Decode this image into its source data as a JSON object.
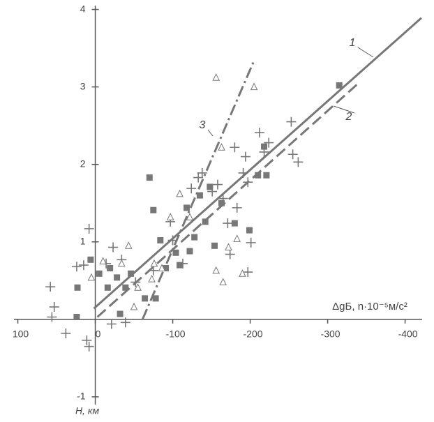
{
  "chart_data": {
    "type": "scatter",
    "x_label": "ΔgБ, n·10⁻⁵м/с²",
    "y_label": "H, км",
    "xlim": [
      105,
      -422
    ],
    "ylim": [
      -1.1,
      4.05
    ],
    "xticks": [
      100,
      0,
      -100,
      -200,
      -300,
      -400
    ],
    "yticks": [
      -1,
      1,
      2,
      3,
      4
    ],
    "color": "#777777",
    "series": [
      {
        "marker": "plus",
        "x": [
          58,
          53,
          56,
          38,
          24,
          15,
          8,
          11,
          8,
          -14,
          -23,
          -21,
          -34,
          -39,
          -52,
          -75,
          -97,
          -100,
          -113,
          -124,
          -133,
          -138,
          -151,
          -158,
          -165,
          -171,
          -174,
          -180,
          -183,
          -191,
          -197,
          -201,
          -197,
          -212,
          -218,
          -224,
          -253,
          -255,
          -262,
          -194
        ],
        "values": [
          0.42,
          0.16,
          0.03,
          -0.18,
          0.68,
          0.7,
          1.17,
          -0.27,
          -0.35,
          0.72,
          0.93,
          -0.06,
          0.77,
          -0.04,
          0.48,
          0.63,
          1.26,
          1.02,
          0.72,
          1.69,
          1.83,
          1.89,
          1.65,
          1.74,
          1.56,
          1.24,
          0.84,
          2.22,
          1.44,
          1.89,
          1.77,
          0.99,
          0.61,
          2.41,
          2.16,
          2.28,
          2.55,
          2.13,
          2.03,
          2.1
        ]
      },
      {
        "marker": "square",
        "x": [
          24,
          23,
          6,
          -5,
          -16,
          -19,
          -28,
          -32,
          -39,
          -46,
          -64,
          -70,
          -75,
          -78,
          -84,
          -91,
          -104,
          -109,
          -118,
          -122,
          -128,
          -135,
          -142,
          -148,
          -154,
          -163,
          -180,
          -199,
          -210,
          -221,
          -218,
          -315
        ],
        "values": [
          0.03,
          0.41,
          0.77,
          0.59,
          0.41,
          0.66,
          0.54,
          0.07,
          0.41,
          0.59,
          0.27,
          1.83,
          1.41,
          0.27,
          1.02,
          0.66,
          0.86,
          0.7,
          1.44,
          0.88,
          1.06,
          1.6,
          1.26,
          1.71,
          0.95,
          1.5,
          1.24,
          1.15,
          1.86,
          1.86,
          2.23,
          3.02
        ]
      },
      {
        "marker": "triangle",
        "x": [
          5,
          -10,
          -34,
          -43,
          -50,
          -55,
          -73,
          -86,
          -97,
          -109,
          -122,
          -156,
          -163,
          -156,
          -165,
          -172,
          -183,
          -190,
          -205,
          -76
        ],
        "values": [
          0.54,
          0.75,
          0.72,
          0.95,
          0.16,
          0.41,
          0.52,
          0.66,
          1.32,
          1.62,
          1.32,
          3.12,
          2.22,
          0.63,
          0.48,
          0.93,
          1.04,
          0.59,
          3.0,
          0.72
        ]
      }
    ],
    "lines": [
      {
        "label": "1",
        "dash": "solid",
        "x": [
          1.8,
          -421
        ],
        "values": [
          0.14,
          3.89
        ]
      },
      {
        "label": "2",
        "dash": "dashed",
        "x": [
          -2.7,
          -340
        ],
        "values": [
          0.03,
          3.05
        ]
      },
      {
        "label": "3",
        "dash": "dashdot",
        "x": [
          -61,
          -205
        ],
        "values": [
          0,
          3.34
        ]
      }
    ]
  }
}
